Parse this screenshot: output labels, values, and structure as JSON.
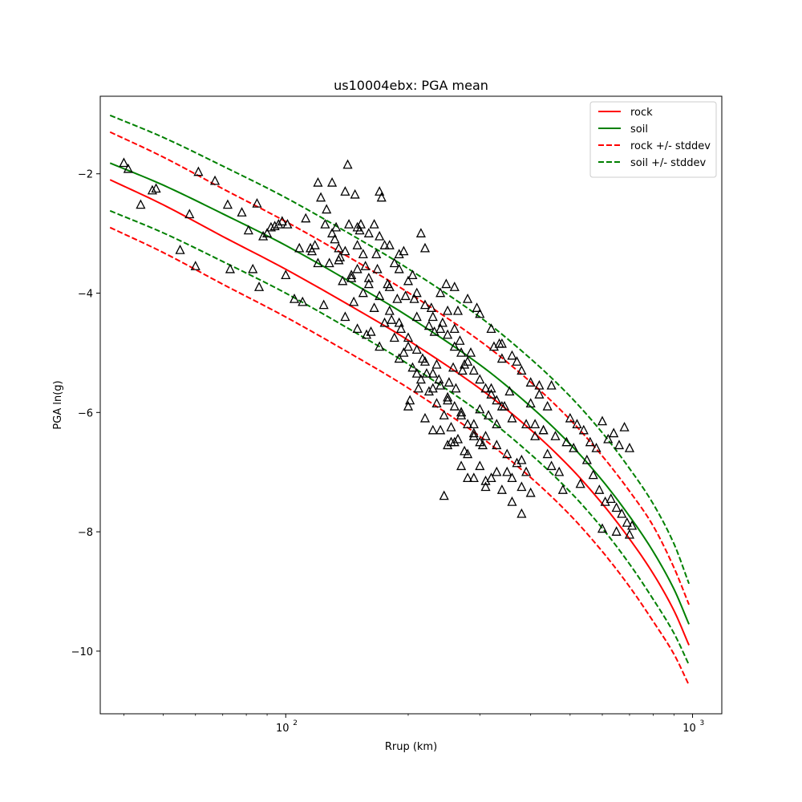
{
  "chart_data": {
    "type": "scatter",
    "title": "us10004ebx: PGA mean",
    "xlabel": "Rrup (km)",
    "ylabel": "PGA ln(g)",
    "xscale": "log",
    "xlim": [
      35,
      1180
    ],
    "ylim": [
      -11.05,
      -0.7
    ],
    "grid": false,
    "legend_placement": "top-right",
    "x_ticks": [
      {
        "value": 100,
        "base": "10",
        "exp": "2"
      },
      {
        "value": 1000,
        "base": "10",
        "exp": "3"
      }
    ],
    "y_ticks": [
      {
        "value": -2,
        "label": "−2"
      },
      {
        "value": -4,
        "label": "−4"
      },
      {
        "value": -6,
        "label": "−6"
      },
      {
        "value": -8,
        "label": "−8"
      },
      {
        "value": -10,
        "label": "−10"
      }
    ],
    "series": [
      {
        "name": "rock",
        "style": "solid",
        "color": "#ff0000",
        "x": [
          37,
          50,
          70,
          100,
          150,
          200,
          300,
          400,
          500,
          600,
          700,
          800,
          900,
          980
        ],
        "y": [
          -2.1,
          -2.52,
          -3.05,
          -3.6,
          -4.28,
          -4.79,
          -5.6,
          -6.29,
          -6.92,
          -7.53,
          -8.12,
          -8.7,
          -9.32,
          -9.9
        ]
      },
      {
        "name": "soil",
        "style": "solid",
        "color": "#008000",
        "x": [
          37,
          50,
          70,
          100,
          150,
          200,
          300,
          400,
          500,
          600,
          700,
          800,
          900,
          980
        ],
        "y": [
          -1.82,
          -2.19,
          -2.67,
          -3.2,
          -3.88,
          -4.39,
          -5.2,
          -5.9,
          -6.53,
          -7.14,
          -7.74,
          -8.33,
          -8.96,
          -9.55
        ]
      },
      {
        "name": "rock +/- stddev",
        "style": "dashed",
        "color": "#ff0000",
        "x": [
          37,
          50,
          70,
          100,
          150,
          200,
          300,
          400,
          500,
          600,
          700,
          800,
          900,
          980
        ],
        "y": [
          -1.3,
          -1.72,
          -2.25,
          -2.8,
          -3.48,
          -3.99,
          -4.8,
          -5.49,
          -6.12,
          -6.73,
          -7.32,
          -7.9,
          -8.6,
          -9.22
        ]
      },
      {
        "name": "",
        "style": "dashed",
        "color": "#ff0000",
        "x": [
          37,
          50,
          70,
          100,
          150,
          200,
          300,
          400,
          500,
          600,
          700,
          800,
          900,
          980
        ],
        "y": [
          -2.9,
          -3.32,
          -3.85,
          -4.4,
          -5.08,
          -5.59,
          -6.4,
          -7.09,
          -7.72,
          -8.33,
          -8.92,
          -9.5,
          -10.05,
          -10.57
        ]
      },
      {
        "name": "soil +/- stddev",
        "style": "dashed",
        "color": "#008000",
        "x": [
          37,
          50,
          70,
          100,
          150,
          200,
          300,
          400,
          500,
          600,
          700,
          800,
          900,
          980
        ],
        "y": [
          -1.02,
          -1.39,
          -1.87,
          -2.4,
          -3.08,
          -3.59,
          -4.4,
          -5.1,
          -5.73,
          -6.34,
          -6.94,
          -7.53,
          -8.2,
          -8.87
        ]
      },
      {
        "name": "",
        "style": "dashed",
        "color": "#008000",
        "x": [
          37,
          50,
          70,
          100,
          150,
          200,
          300,
          400,
          500,
          600,
          700,
          800,
          900,
          980
        ],
        "y": [
          -2.62,
          -2.99,
          -3.47,
          -4.0,
          -4.68,
          -5.19,
          -6.0,
          -6.7,
          -7.33,
          -7.94,
          -8.54,
          -9.13,
          -9.7,
          -10.23
        ]
      }
    ],
    "observations": {
      "marker": "triangle",
      "x": [
        40,
        41,
        44,
        47,
        48,
        55,
        58,
        60,
        61,
        67,
        72,
        73,
        78,
        81,
        83,
        85,
        86,
        88,
        90,
        92,
        94,
        96,
        98,
        100,
        101,
        105,
        108,
        110,
        112,
        115,
        116,
        118,
        120,
        122,
        124,
        126,
        128,
        130,
        132,
        133,
        135,
        136,
        138,
        140,
        142,
        143,
        145,
        147,
        148,
        150,
        152,
        153,
        155,
        157,
        158,
        160,
        162,
        165,
        167,
        168,
        170,
        172,
        175,
        178,
        180,
        182,
        185,
        188,
        190,
        192,
        195,
        197,
        200,
        202,
        205,
        207,
        210,
        212,
        215,
        217,
        220,
        222,
        225,
        228,
        230,
        232,
        235,
        238,
        240,
        243,
        245,
        248,
        250,
        252,
        255,
        258,
        260,
        262,
        265,
        268,
        270,
        272,
        275,
        280,
        285,
        290,
        295,
        300,
        305,
        310,
        315,
        320,
        325,
        330,
        335,
        340,
        345,
        350,
        355,
        360,
        370,
        380,
        390,
        400,
        410,
        420,
        430,
        440,
        450,
        460,
        480,
        500,
        520,
        540,
        560,
        580,
        600,
        620,
        640,
        660,
        680,
        700,
        150,
        160,
        170,
        180,
        190,
        200,
        210,
        220,
        230,
        240,
        250,
        260,
        270,
        280,
        290,
        300,
        310,
        320,
        330,
        340,
        130,
        140,
        150,
        160,
        170,
        180,
        190,
        200,
        210,
        220,
        230,
        240,
        250,
        260,
        270,
        280,
        290,
        300,
        135,
        145,
        155,
        165,
        175,
        185,
        195,
        205,
        215,
        225,
        235,
        245,
        255,
        265,
        275,
        120,
        125,
        140,
        150,
        170,
        190,
        210,
        230,
        250,
        270,
        290,
        310,
        330,
        350,
        370,
        390,
        410,
        430,
        450,
        470,
        490,
        510,
        530,
        550,
        570,
        590,
        610,
        630,
        650,
        670,
        690,
        710,
        260,
        280,
        300,
        320,
        340,
        360,
        380,
        400,
        420,
        440,
        250,
        270,
        290,
        310,
        330,
        360,
        380,
        400,
        200,
        220,
        240,
        260,
        280,
        300,
        320,
        340,
        360,
        380,
        600,
        650,
        700
      ],
      "y": [
        -1.82,
        -1.92,
        -2.52,
        -2.28,
        -2.25,
        -3.28,
        -2.68,
        -3.55,
        -1.97,
        -2.12,
        -2.52,
        -3.6,
        -2.65,
        -2.95,
        -3.6,
        -2.5,
        -3.9,
        -3.05,
        -3.0,
        -2.9,
        -2.88,
        -2.85,
        -2.8,
        -3.7,
        -2.85,
        -4.1,
        -3.25,
        -4.15,
        -2.75,
        -3.25,
        -3.3,
        -3.2,
        -2.15,
        -2.4,
        -4.2,
        -2.6,
        -3.5,
        -2.15,
        -3.1,
        -2.9,
        -3.25,
        -3.4,
        -3.8,
        -2.3,
        -1.85,
        -2.85,
        -3.7,
        -4.15,
        -2.35,
        -3.2,
        -2.95,
        -2.85,
        -3.35,
        -3.55,
        -4.7,
        -3.75,
        -4.65,
        -2.85,
        -3.35,
        -3.6,
        -2.3,
        -2.4,
        -3.2,
        -3.85,
        -3.9,
        -4.45,
        -3.5,
        -4.1,
        -3.35,
        -4.6,
        -3.3,
        -4.05,
        -4.9,
        -5.8,
        -3.7,
        -4.1,
        -4.4,
        -5.6,
        -3.0,
        -5.1,
        -3.25,
        -5.35,
        -4.55,
        -4.25,
        -6.3,
        -4.65,
        -5.2,
        -5.45,
        -4.0,
        -4.5,
        -7.4,
        -3.85,
        -4.3,
        -5.5,
        -6.5,
        -5.25,
        -4.6,
        -5.6,
        -4.3,
        -4.8,
        -6.0,
        -5.3,
        -5.2,
        -7.1,
        -5.0,
        -6.4,
        -4.25,
        -5.95,
        -6.55,
        -7.15,
        -6.05,
        -5.6,
        -4.9,
        -6.2,
        -4.85,
        -5.1,
        -5.9,
        -7.0,
        -5.65,
        -6.1,
        -5.15,
        -6.8,
        -6.2,
        -5.85,
        -6.4,
        -5.55,
        -6.3,
        -6.7,
        -5.55,
        -6.4,
        -7.3,
        -6.1,
        -6.2,
        -6.3,
        -6.5,
        -6.6,
        -6.15,
        -6.45,
        -6.35,
        -6.55,
        -6.25,
        -6.6,
        -2.9,
        -3.0,
        -3.05,
        -3.2,
        -3.6,
        -3.8,
        -4.0,
        -4.2,
        -4.4,
        -4.6,
        -4.7,
        -4.9,
        -5.0,
        -5.15,
        -5.3,
        -5.45,
        -5.6,
        -5.7,
        -5.8,
        -5.9,
        -3.0,
        -3.3,
        -3.6,
        -3.85,
        -4.05,
        -4.3,
        -4.5,
        -4.75,
        -4.95,
        -5.15,
        -5.35,
        -5.55,
        -5.75,
        -5.9,
        -6.05,
        -6.2,
        -6.35,
        -6.5,
        -3.45,
        -3.75,
        -4.0,
        -4.25,
        -4.5,
        -4.75,
        -5.0,
        -5.25,
        -5.45,
        -5.65,
        -5.85,
        -6.05,
        -6.25,
        -6.45,
        -6.65,
        -3.5,
        -2.85,
        -4.4,
        -4.6,
        -4.9,
        -5.1,
        -5.35,
        -5.6,
        -5.8,
        -6.0,
        -6.2,
        -6.4,
        -6.55,
        -6.7,
        -6.85,
        -7.0,
        -6.2,
        -6.3,
        -6.9,
        -7.0,
        -6.5,
        -6.6,
        -7.2,
        -6.8,
        -7.05,
        -7.3,
        -7.5,
        -7.45,
        -7.6,
        -7.7,
        -7.85,
        -7.9,
        -3.9,
        -4.1,
        -4.35,
        -4.6,
        -4.85,
        -5.05,
        -5.3,
        -5.5,
        -5.7,
        -5.9,
        -6.55,
        -6.9,
        -7.1,
        -7.25,
        -7.0,
        -7.1,
        -7.25,
        -7.35,
        -5.9,
        -6.1,
        -6.3,
        -6.5,
        -6.7,
        -6.9,
        -7.1,
        -7.3,
        -7.5,
        -7.7,
        -7.95,
        -8.0,
        -8.05
      ]
    }
  }
}
